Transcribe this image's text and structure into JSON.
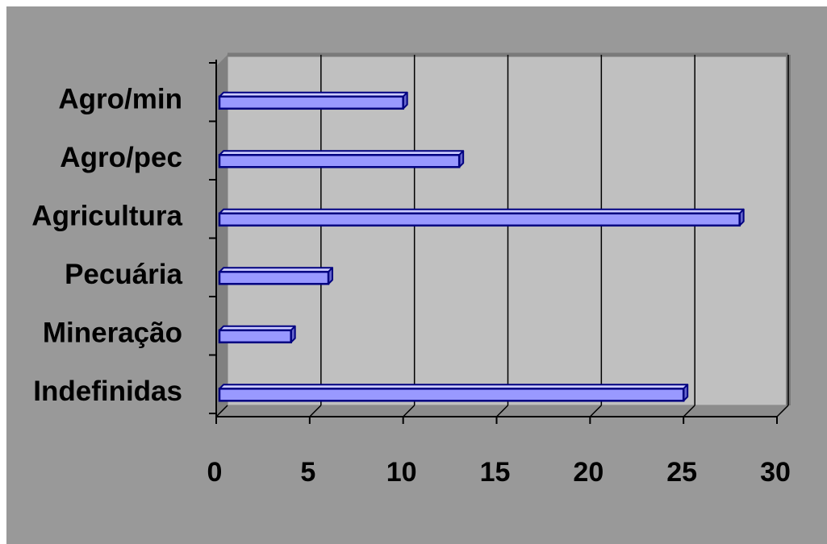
{
  "chart_data": {
    "type": "bar",
    "orientation": "horizontal",
    "style": "3d",
    "categories": [
      "Agro/min",
      "Agro/pec",
      "Agricultura",
      "Pecuária",
      "Mineração",
      "Indefinidas"
    ],
    "values": [
      10,
      13,
      28,
      6,
      4,
      25
    ],
    "xlim": [
      0,
      30
    ],
    "xticks": [
      "0",
      "5",
      "10",
      "15",
      "20",
      "25",
      "30"
    ],
    "xtick_values": [
      0,
      5,
      10,
      15,
      20,
      25,
      30
    ],
    "title": "",
    "xlabel": "",
    "ylabel": "",
    "grid": "vertical",
    "legend": "none",
    "colors": {
      "figure_background": "#999999",
      "plot_background": "#c0c0c0",
      "wall_side": "#808080",
      "wall_floor": "#8c8c8c",
      "bar_fill": "#9999ff",
      "bar_top": "#ccccff",
      "bar_side": "#6666cc",
      "bar_edge": "#000080",
      "gridline": "#000000"
    }
  }
}
